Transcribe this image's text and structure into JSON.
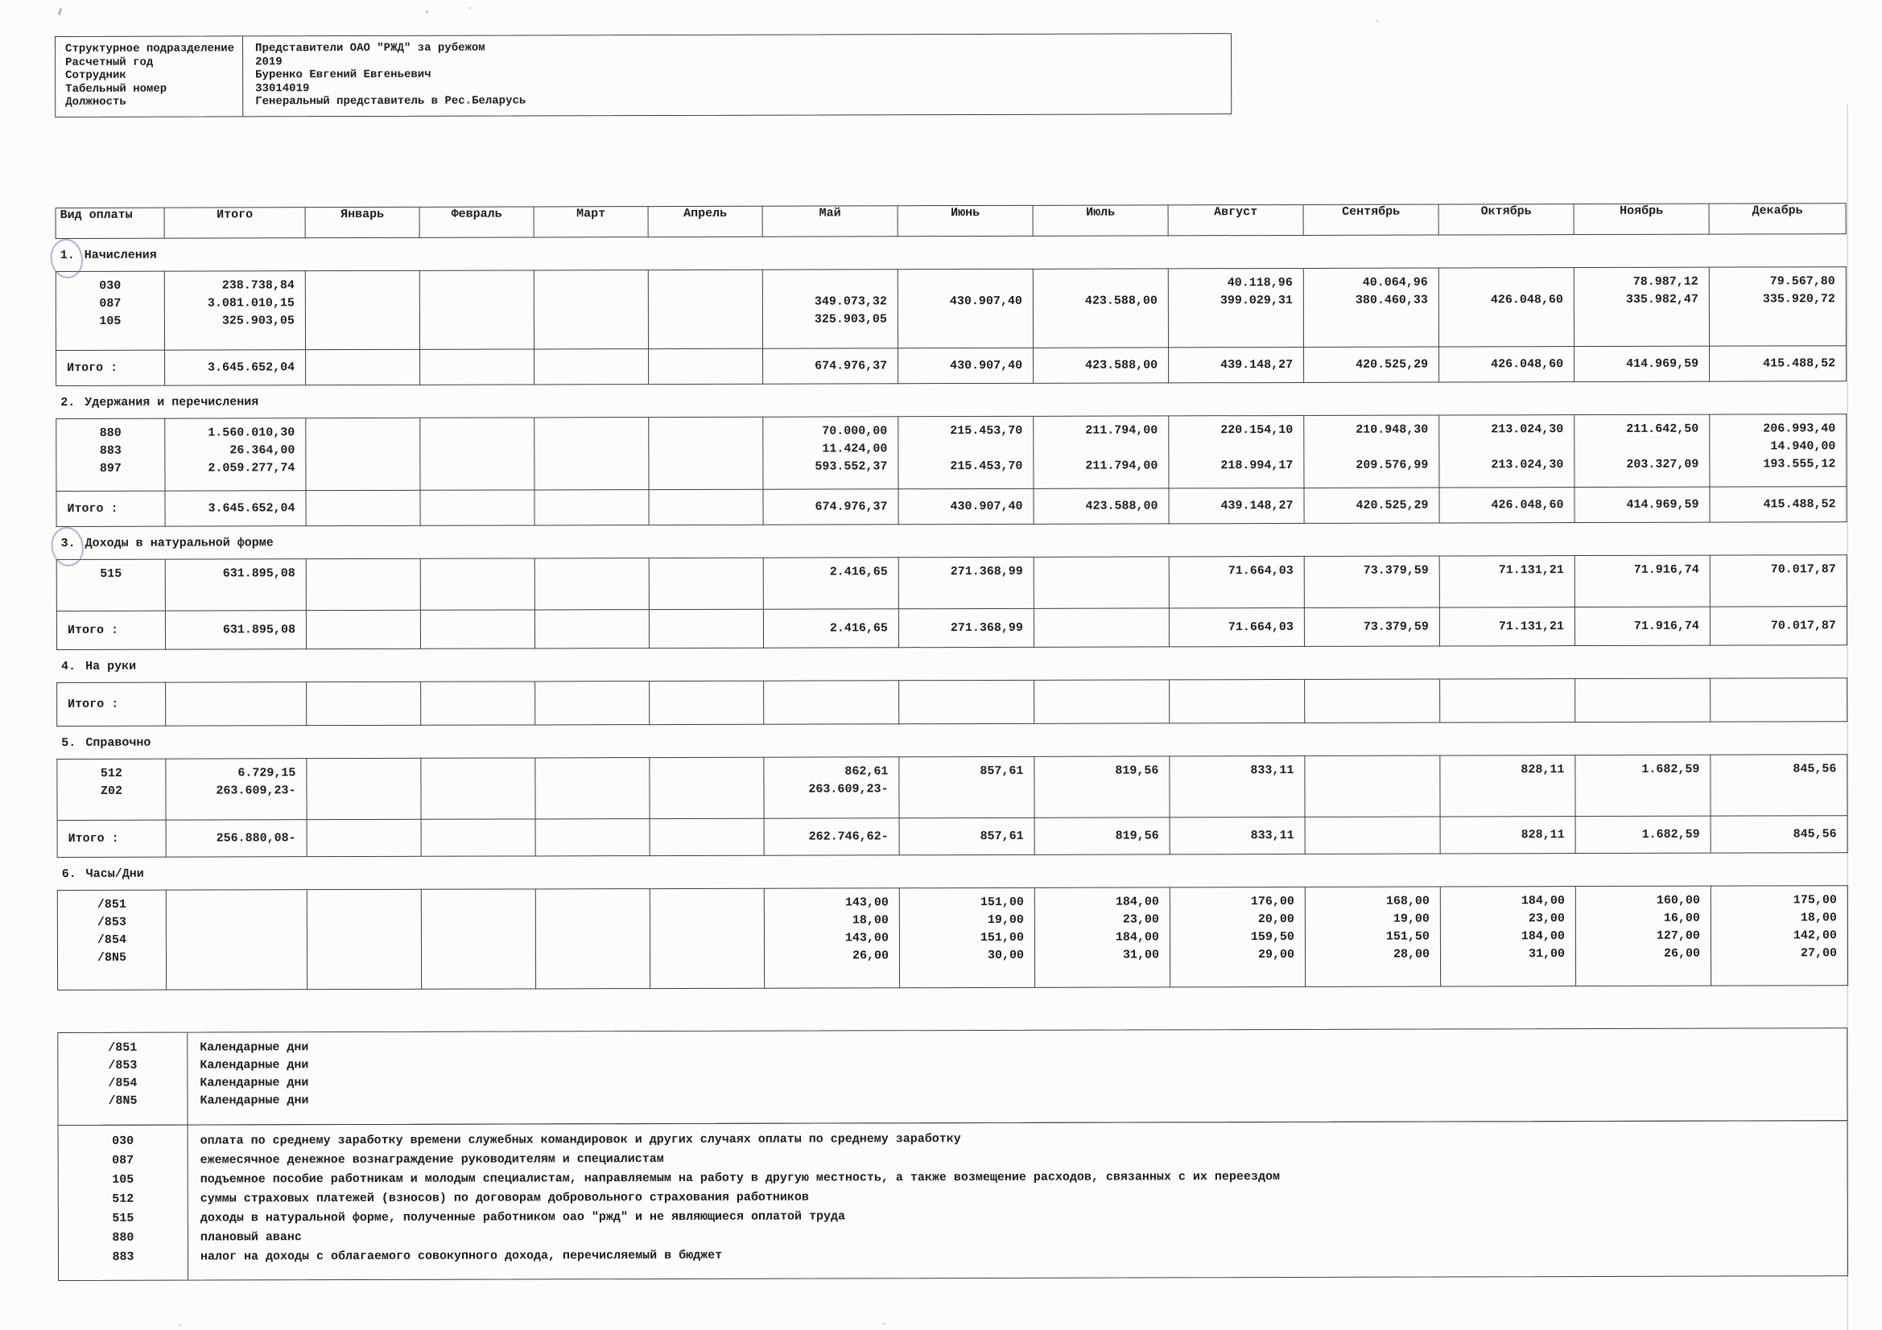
{
  "header": {
    "rows": [
      {
        "label": "Структурное подразделение",
        "value": "Представители ОАО \"РЖД\" за рубежом"
      },
      {
        "label": "Расчетный год",
        "value": "2019"
      },
      {
        "label": "Сотрудник",
        "value": "Буренко Евгений Евгеньевич"
      },
      {
        "label": "Табельный номер",
        "value": "33014019"
      },
      {
        "label": "Должность",
        "value": "Генеральный представитель в Рес.Беларусь"
      }
    ]
  },
  "table": {
    "columns": [
      "Вид оплаты",
      "Итого",
      "Январь",
      "Февраль",
      "Март",
      "Апрель",
      "Май",
      "Июнь",
      "Июль",
      "Август",
      "Сентябрь",
      "Октябрь",
      "Ноябрь",
      "Декабрь"
    ]
  },
  "sections": [
    {
      "num": "1.",
      "name": "Начисления",
      "circled": true,
      "rows": [
        {
          "code": "030",
          "total": "238.738,84",
          "months": [
            "",
            "",
            "",
            "",
            "",
            "",
            "",
            "40.118,96",
            "40.064,96",
            "",
            "78.987,12",
            "79.567,80"
          ]
        },
        {
          "code": "087",
          "total": "3.081.010,15",
          "months": [
            "",
            "",
            "",
            "",
            "349.073,32",
            "430.907,40",
            "423.588,00",
            "399.029,31",
            "380.460,33",
            "426.048,60",
            "335.982,47",
            "335.920,72"
          ]
        },
        {
          "code": "105",
          "total": "325.903,05",
          "months": [
            "",
            "",
            "",
            "",
            "325.903,05",
            "",
            "",
            "",
            "",
            "",
            "",
            ""
          ]
        }
      ],
      "itogo": {
        "label": "Итого :",
        "total": "3.645.652,04",
        "months": [
          "",
          "",
          "",
          "",
          "674.976,37",
          "430.907,40",
          "423.588,00",
          "439.148,27",
          "420.525,29",
          "426.048,60",
          "414.969,59",
          "415.488,52"
        ]
      }
    },
    {
      "num": "2.",
      "name": "Удержания и перечисления",
      "circled": false,
      "rows": [
        {
          "code": "880",
          "total": "1.560.010,30",
          "months": [
            "",
            "",
            "",
            "",
            "70.000,00",
            "215.453,70",
            "211.794,00",
            "220.154,10",
            "210.948,30",
            "213.024,30",
            "211.642,50",
            "206.993,40"
          ]
        },
        {
          "code": "883",
          "total": "26.364,00",
          "months": [
            "",
            "",
            "",
            "",
            "11.424,00",
            "",
            "",
            "",
            "",
            "",
            "",
            "14.940,00"
          ]
        },
        {
          "code": "897",
          "total": "2.059.277,74",
          "months": [
            "",
            "",
            "",
            "",
            "593.552,37",
            "215.453,70",
            "211.794,00",
            "218.994,17",
            "209.576,99",
            "213.024,30",
            "203.327,09",
            "193.555,12"
          ]
        }
      ],
      "itogo": {
        "label": "Итого :",
        "total": "3.645.652,04",
        "months": [
          "",
          "",
          "",
          "",
          "674.976,37",
          "430.907,40",
          "423.588,00",
          "439.148,27",
          "420.525,29",
          "426.048,60",
          "414.969,59",
          "415.488,52"
        ]
      }
    },
    {
      "num": "3.",
      "name": "Доходы в натуральной форме",
      "circled": true,
      "rows": [
        {
          "code": "515",
          "total": "631.895,08",
          "months": [
            "",
            "",
            "",
            "",
            "2.416,65",
            "271.368,99",
            "",
            "71.664,03",
            "73.379,59",
            "71.131,21",
            "71.916,74",
            "70.017,87"
          ]
        }
      ],
      "itogo": {
        "label": "Итого :",
        "total": "631.895,08",
        "months": [
          "",
          "",
          "",
          "",
          "2.416,65",
          "271.368,99",
          "",
          "71.664,03",
          "73.379,59",
          "71.131,21",
          "71.916,74",
          "70.017,87"
        ]
      }
    },
    {
      "num": "4.",
      "name": "На руки",
      "circled": false,
      "rows": [],
      "itogo": {
        "label": "Итого :",
        "total": "",
        "months": [
          "",
          "",
          "",
          "",
          "",
          "",
          "",
          "",
          "",
          "",
          "",
          ""
        ]
      }
    },
    {
      "num": "5.",
      "name": "Справочно",
      "circled": false,
      "rows": [
        {
          "code": "512",
          "total": "6.729,15",
          "months": [
            "",
            "",
            "",
            "",
            "862,61",
            "857,61",
            "819,56",
            "833,11",
            "",
            "828,11",
            "1.682,59",
            "845,56"
          ]
        },
        {
          "code": "Z02",
          "total": "263.609,23-",
          "months": [
            "",
            "",
            "",
            "",
            "263.609,23-",
            "",
            "",
            "",
            "",
            "",
            "",
            ""
          ]
        }
      ],
      "itogo": {
        "label": "Итого :",
        "total": "256.880,08-",
        "months": [
          "",
          "",
          "",
          "",
          "262.746,62-",
          "857,61",
          "819,56",
          "833,11",
          "",
          "828,11",
          "1.682,59",
          "845,56"
        ]
      }
    },
    {
      "num": "6.",
      "name": "Часы/Дни",
      "circled": false,
      "rows": [
        {
          "code": "/851",
          "total": "",
          "months": [
            "",
            "",
            "",
            "",
            "143,00",
            "151,00",
            "184,00",
            "176,00",
            "168,00",
            "184,00",
            "160,00",
            "175,00"
          ]
        },
        {
          "code": "/853",
          "total": "",
          "months": [
            "",
            "",
            "",
            "",
            "18,00",
            "19,00",
            "23,00",
            "20,00",
            "19,00",
            "23,00",
            "16,00",
            "18,00"
          ]
        },
        {
          "code": "/854",
          "total": "",
          "months": [
            "",
            "",
            "",
            "",
            "143,00",
            "151,00",
            "184,00",
            "159,50",
            "151,50",
            "184,00",
            "127,00",
            "142,00"
          ]
        },
        {
          "code": "/8N5",
          "total": "",
          "months": [
            "",
            "",
            "",
            "",
            "26,00",
            "30,00",
            "31,00",
            "29,00",
            "28,00",
            "31,00",
            "26,00",
            "27,00"
          ]
        }
      ]
    }
  ],
  "legend_days": [
    {
      "code": "/851",
      "desc": "Календарные дни"
    },
    {
      "code": "/853",
      "desc": "Календарные дни"
    },
    {
      "code": "/854",
      "desc": "Календарные дни"
    },
    {
      "code": "/8N5",
      "desc": "Календарные дни"
    }
  ],
  "legend_codes": [
    {
      "code": "030",
      "desc": "оплата по среднему заработку времени служебных командировок и других случаях оплаты по среднему заработку"
    },
    {
      "code": "087",
      "desc": "ежемесячное денежное вознаграждение руководителям и специалистам"
    },
    {
      "code": "105",
      "desc": "подъемное пособие работникам и молодым специалистам, направляемым на работу в другую местность, а также возмещение расходов, связанных с их переездом"
    },
    {
      "code": "512",
      "desc": "суммы страховых платежей (взносов) по договорам добровольного страхования работников"
    },
    {
      "code": "515",
      "desc": "доходы в натуральной форме, полученные работником оао \"ржд\" и не являющиеся оплатой труда"
    },
    {
      "code": "880",
      "desc": "плановый аванс"
    },
    {
      "code": "883",
      "desc": "налог на доходы с облагаемого совокупного дохода, перечисляемый в бюджет"
    }
  ]
}
